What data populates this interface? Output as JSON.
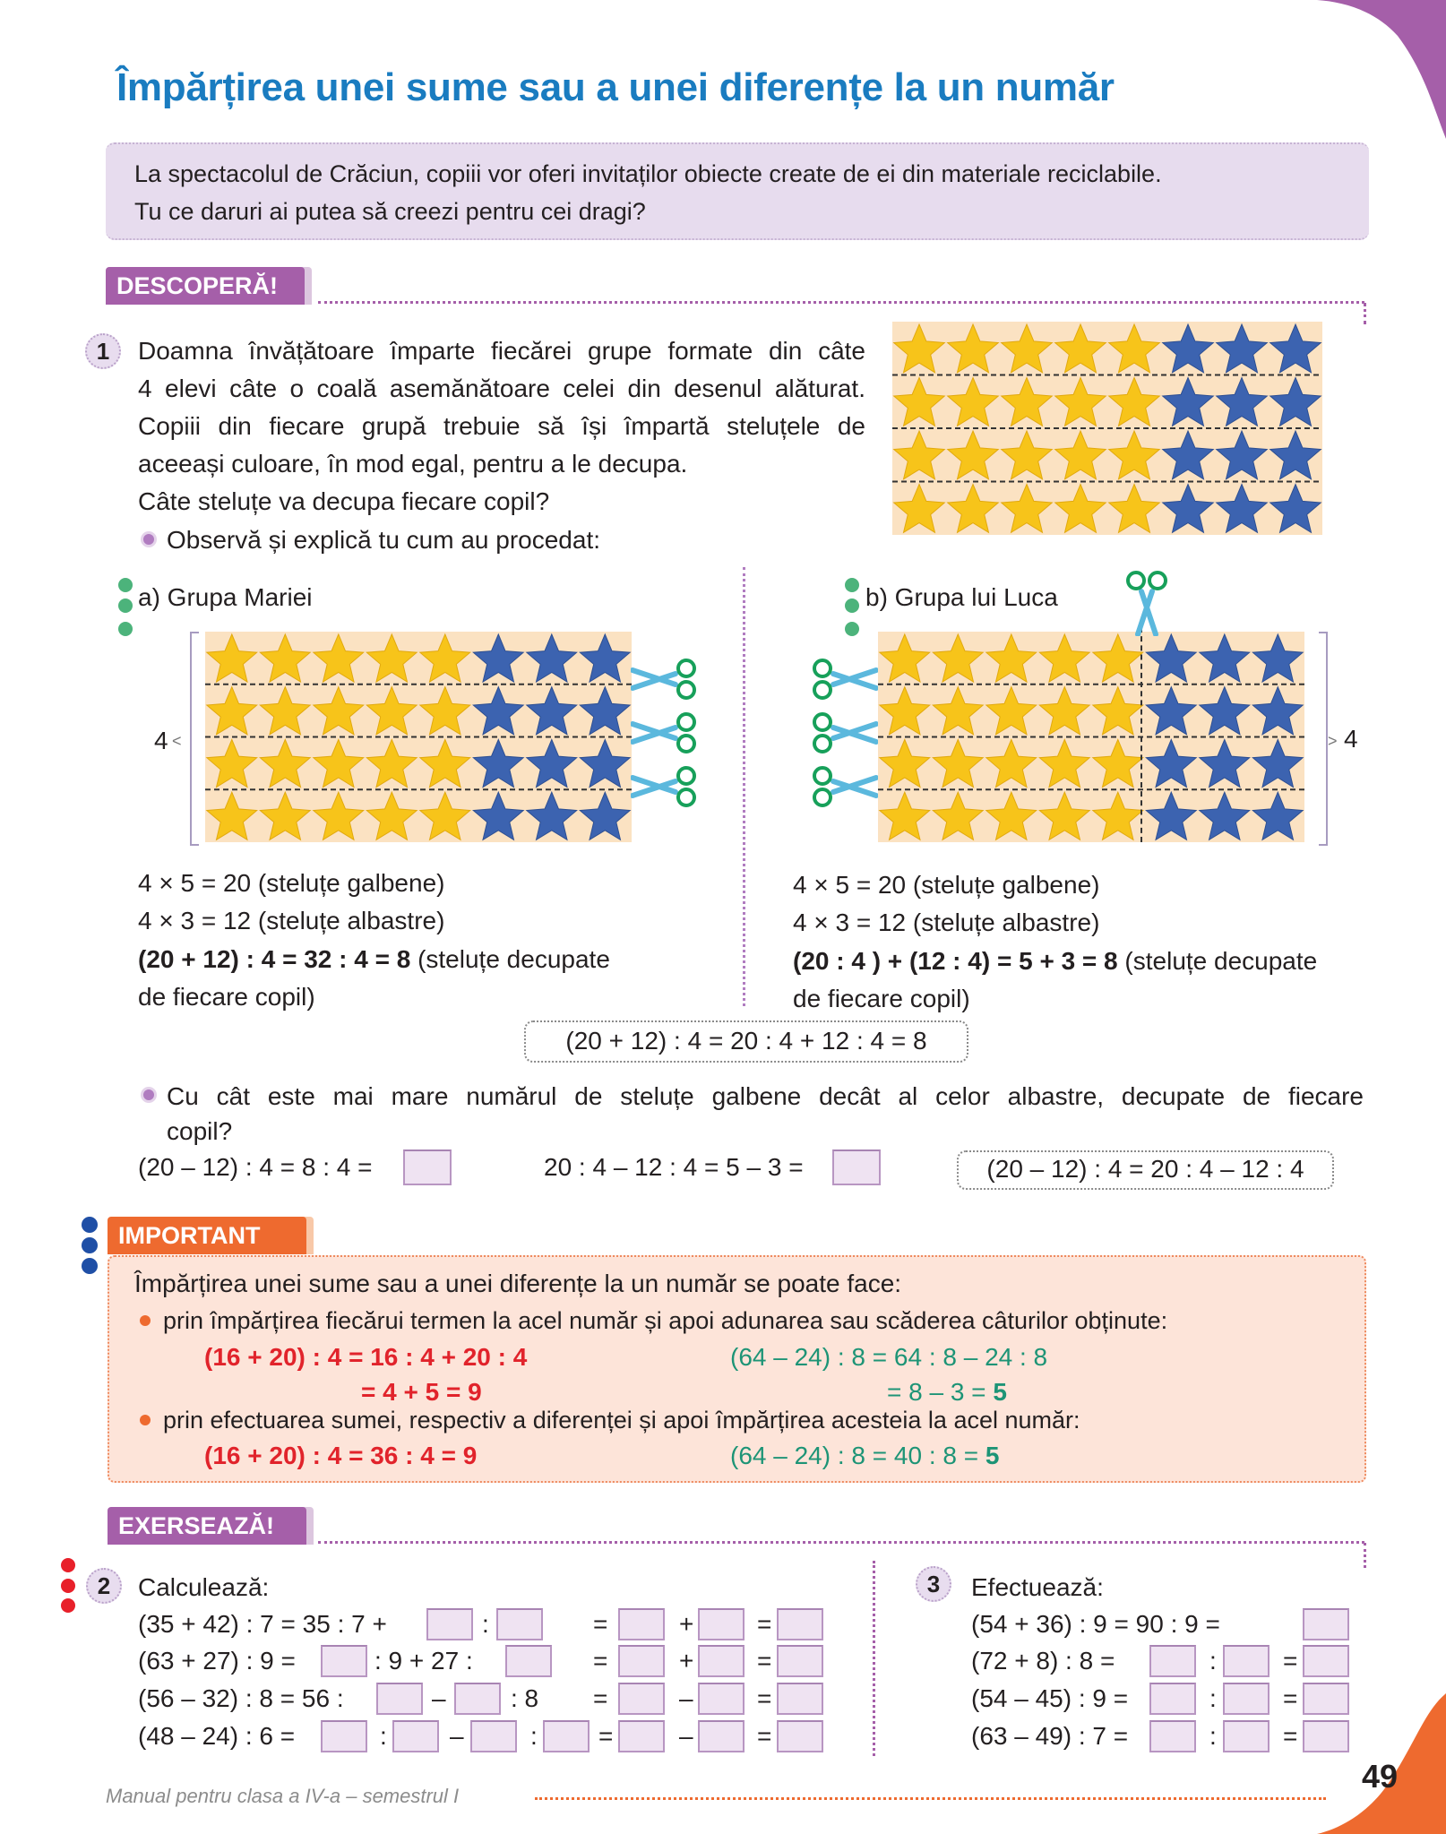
{
  "title": "Împărțirea unei sume sau a unei diferențe la un număr",
  "intro": {
    "line1": "La spectacolul de Crăciun, copiii vor oferi invitaților obiecte create de ei din materiale reciclabile.",
    "line2": "Tu ce daruri ai putea să creezi pentru cei dragi?"
  },
  "sections": {
    "discover": "DESCOPERĂ!",
    "important": "IMPORTANT",
    "practice": "EXERSEAZĂ!"
  },
  "colors": {
    "title": "#1a7cc0",
    "purple": "#a55fa9",
    "orange": "#ee6a2f",
    "star_yellow": "#f7c41a",
    "star_blue": "#3c63b0",
    "red": "#e1232b",
    "green": "#1d9476"
  },
  "star_grid": {
    "rows": 4,
    "yellow_per_row": 5,
    "blue_per_row": 3
  },
  "exercise1": {
    "number": "1",
    "lines": [
      "Doamna învățătoare împarte fiecărei grupe formate din câte",
      "4 elevi câte o coală asemănătoare celei din desenul alăturat.",
      "Copiii din fiecare grupă trebuie să își împartă steluțele de",
      "aceeași culoare, în mod egal, pentru a le decupa.",
      "Câte steluțe va decupa fiecare copil?"
    ],
    "observe": "Observă și explică tu cum au procedat:",
    "group_a": {
      "label": "a) Grupa Mariei",
      "count_label": "4",
      "eq1": "4 × 5 = 20 (steluțe galbene)",
      "eq2": "4 × 3 = 12 (steluțe albastre)",
      "eq3_bold": "(20 + 12) : 4 = 32 : 4 = 8",
      "eq3_rest": " (steluțe decupate",
      "eq4": "de fiecare copil)"
    },
    "group_b": {
      "label": "b) Grupa lui Luca",
      "count_label": "4",
      "eq1": "4 × 5 = 20 (steluțe galbene)",
      "eq2": "4 × 3 = 12 (steluțe albastre)",
      "eq3_bold": "(20 : 4 ) + (12 : 4) = 5 + 3 = 8",
      "eq3_rest": " (steluțe decupate",
      "eq4": "de fiecare copil)"
    },
    "rule_box": "(20 + 12) : 4 = 20 : 4 + 12 : 4 = 8",
    "question_line1": "Cu cât este mai mare numărul de steluțe galbene decât al celor albastre, decupate de fiecare",
    "question_line2": "copil?",
    "calc1": "(20 – 12) : 4 = 8 : 4 =",
    "calc2": "20 : 4 – 12 : 4 = 5 – 3 =",
    "rule_box2": "(20 – 12) : 4 = 20 : 4 – 12 : 4"
  },
  "important": {
    "intro": "Împărțirea unei sume sau a unei diferențe la un număr se poate face:",
    "bullet1": "prin împărțirea fiecărui termen la acel număr și apoi adunarea sau scăderea câturilor obținute:",
    "ex1_red": "(16 + 20) : 4 = 16  : 4 + 20 : 4",
    "ex1_red_2": "=  4 + 5 =  9",
    "ex1_green": "(64 – 24) : 8 = 64 :  8 – 24 : 8",
    "ex1_green_2a": "=  8 – 3 =  ",
    "ex1_green_2b": "5",
    "bullet2": "prin efectuarea sumei, respectiv a diferenței și apoi împărțirea acesteia la acel număr:",
    "ex2_red": "(16 + 20) : 4 = 36 : 4 = 9",
    "ex2_green_a": "(64 – 24) : 8 = 40 : 8 = ",
    "ex2_green_b": "5"
  },
  "exercise2": {
    "number": "2",
    "label": "Calculează:",
    "rows": [
      [
        "(35 + 42) : 7 = 35 :  7 +",
        null,
        ":",
        null,
        "=",
        null,
        "+",
        null,
        "=",
        null
      ],
      [
        "(63 + 27) : 9 =",
        null,
        ": 9 + 27 :",
        null,
        "=",
        null,
        "+",
        null,
        "=",
        null
      ],
      [
        "(56 – 32) : 8 = 56 :",
        null,
        "–",
        null,
        ":   8",
        "=",
        null,
        "–",
        null,
        "=",
        null
      ],
      [
        "(48 – 24) : 6 =",
        null,
        ":",
        null,
        "–",
        null,
        ":",
        null,
        "=",
        null,
        "–",
        null,
        "=",
        null
      ]
    ]
  },
  "exercise3": {
    "number": "3",
    "label": "Efectuează:",
    "rows": [
      [
        "(54 + 36) : 9 = 90   :     9 =",
        null
      ],
      [
        "(72 +   8) : 8 =",
        null,
        ":",
        null,
        "=",
        null
      ],
      [
        "(54 – 45) : 9 =",
        null,
        ":",
        null,
        "=",
        null
      ],
      [
        "(63 – 49) : 7 =",
        null,
        ":",
        null,
        "=",
        null
      ]
    ]
  },
  "footer": {
    "book": "Manual pentru clasa a IV-a – semestrul I",
    "page": "49"
  }
}
